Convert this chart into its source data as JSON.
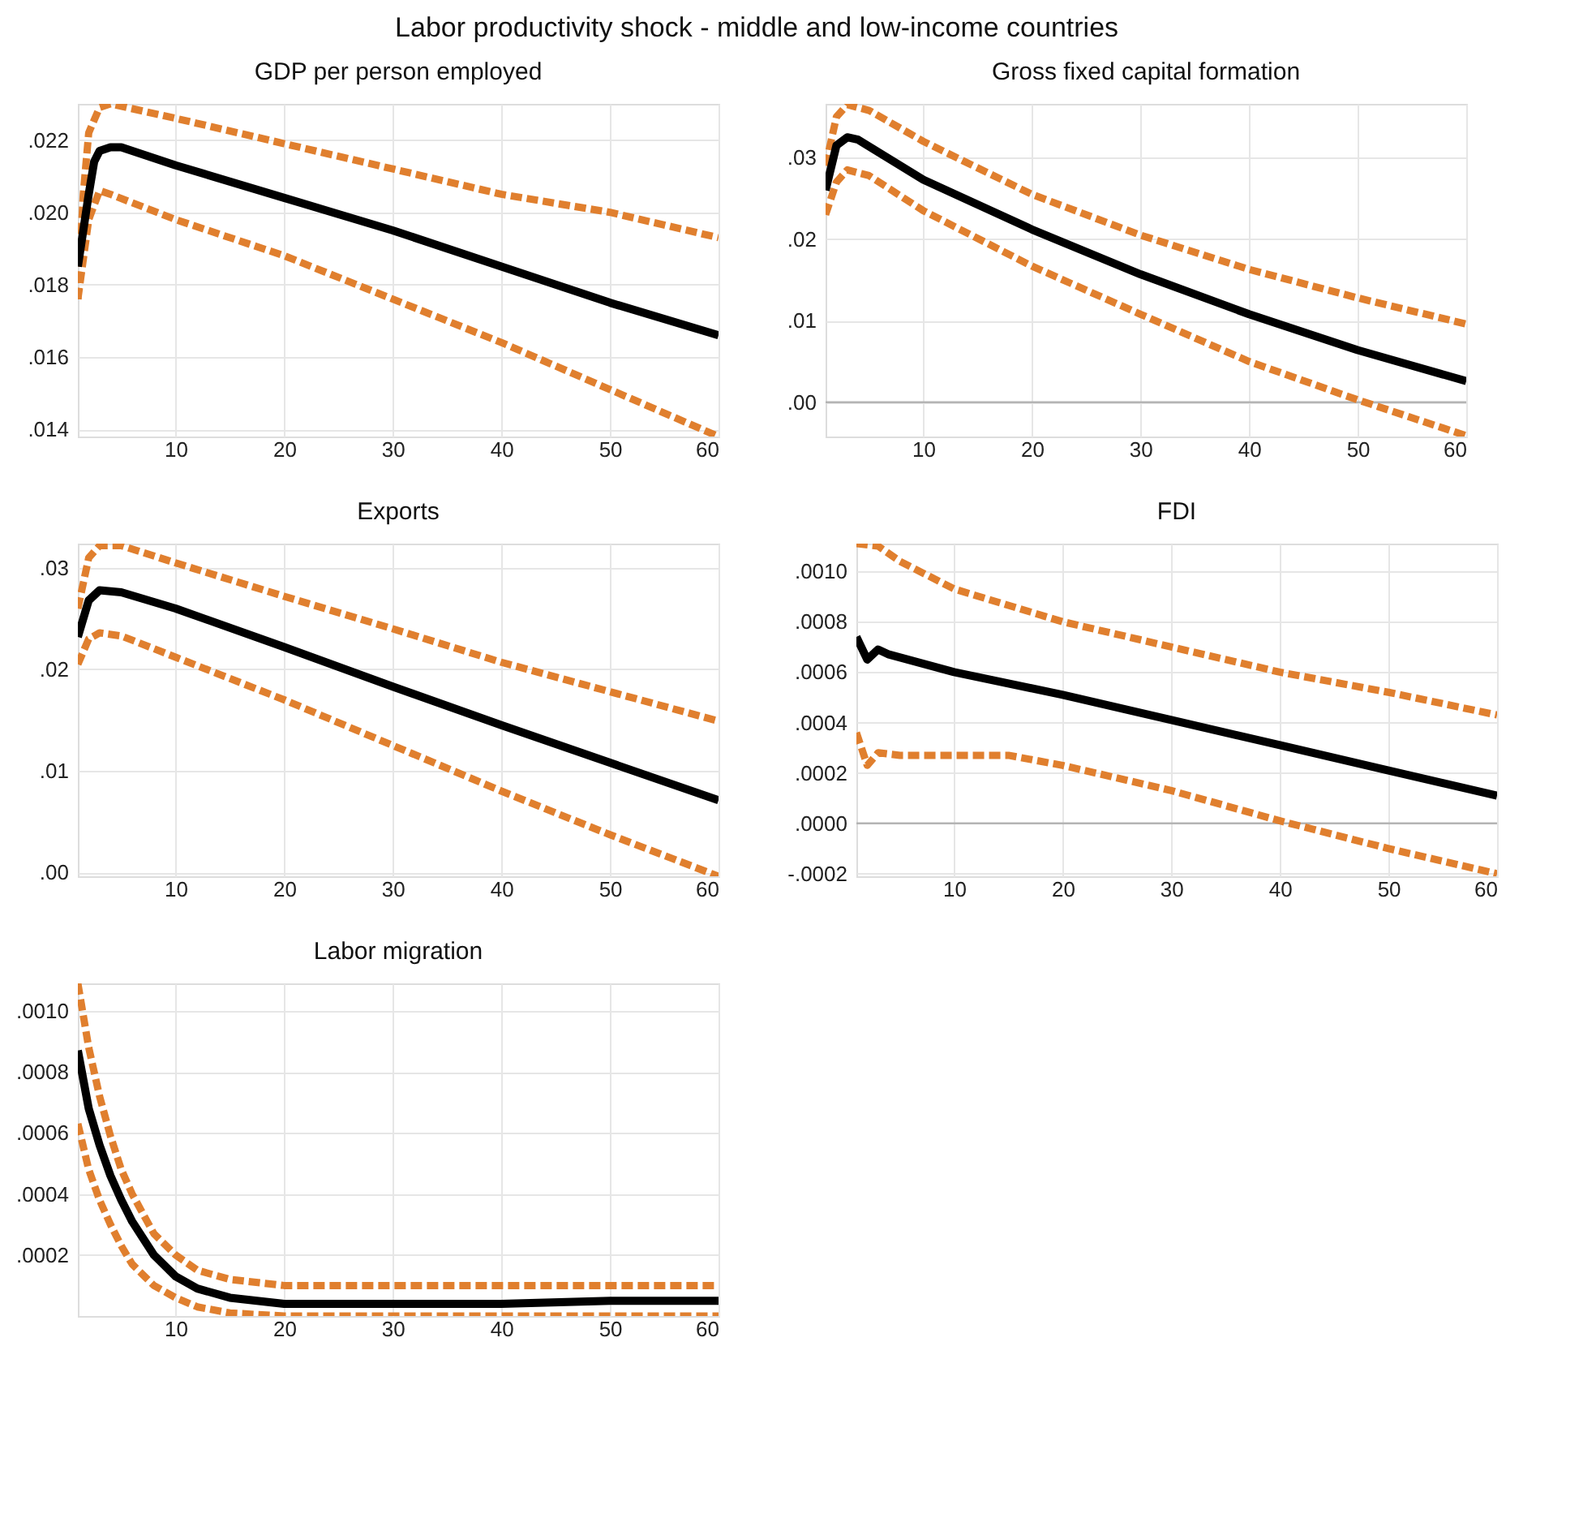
{
  "chart_data": [
    {
      "type": "line",
      "title": "GDP per person employed",
      "annotations": [
        "Labor productivity shock - middle and low-income countries"
      ],
      "grid": true,
      "xlim": [
        1,
        60
      ],
      "xticks": [
        10,
        20,
        30,
        40,
        50,
        60
      ],
      "ylim": [
        0.0138,
        0.023
      ],
      "yticks": [
        {
          "value": 0.014,
          "label": ".014"
        },
        {
          "value": 0.016,
          "label": ".016"
        },
        {
          "value": 0.018,
          "label": ".018"
        },
        {
          "value": 0.02,
          "label": ".020"
        },
        {
          "value": 0.022,
          "label": ".022"
        }
      ],
      "series": [
        {
          "color": "#e07f2e",
          "line_style": "dashed",
          "x": [
            1,
            1.5,
            2,
            3,
            4,
            10,
            20,
            30,
            40,
            50,
            60
          ],
          "values": [
            0.0176,
            0.0205,
            0.0222,
            0.0229,
            0.023,
            0.0226,
            0.0219,
            0.0212,
            0.0205,
            0.02,
            0.0193
          ]
        },
        {
          "color": "#e07f2e",
          "line_style": "dashed",
          "x": [
            1,
            2,
            3,
            4,
            10,
            20,
            30,
            40,
            50,
            60
          ],
          "values": [
            0.0176,
            0.0198,
            0.0206,
            0.0205,
            0.0198,
            0.0188,
            0.0176,
            0.0164,
            0.0151,
            0.0138
          ]
        },
        {
          "color": "#000000",
          "line_style": "solid",
          "x": [
            1,
            2,
            2.5,
            3,
            4,
            5,
            10,
            20,
            30,
            40,
            50,
            60
          ],
          "values": [
            0.0185,
            0.0205,
            0.0214,
            0.0217,
            0.0218,
            0.0218,
            0.0213,
            0.0204,
            0.0195,
            0.0185,
            0.0175,
            0.0166
          ]
        }
      ]
    },
    {
      "type": "line",
      "title": "Gross fixed capital formation",
      "grid": true,
      "xlim": [
        1,
        60
      ],
      "xticks": [
        10,
        20,
        30,
        40,
        50,
        60
      ],
      "ylim": [
        -0.0042,
        0.0366
      ],
      "yticks": [
        {
          "value": 0,
          "label": ".00"
        },
        {
          "value": 0.01,
          "label": ".01"
        },
        {
          "value": 0.02,
          "label": ".02"
        },
        {
          "value": 0.03,
          "label": ".03"
        }
      ],
      "ref_lines": [
        {
          "axis": "y",
          "value": 0,
          "color": "#b4b4b4"
        }
      ],
      "series": [
        {
          "color": "#e07f2e",
          "line_style": "dashed",
          "x": [
            1,
            2,
            3,
            5,
            10,
            20,
            30,
            40,
            50,
            60
          ],
          "values": [
            0.029,
            0.035,
            0.0365,
            0.0358,
            0.032,
            0.0255,
            0.0205,
            0.0163,
            0.0128,
            0.0096
          ]
        },
        {
          "color": "#e07f2e",
          "line_style": "dashed",
          "x": [
            1,
            2,
            3,
            5,
            10,
            20,
            30,
            40,
            50,
            60
          ],
          "values": [
            0.023,
            0.027,
            0.0285,
            0.0278,
            0.0235,
            0.0167,
            0.0108,
            0.005,
            0.0003,
            -0.0041
          ]
        },
        {
          "color": "#000000",
          "line_style": "solid",
          "x": [
            1,
            2,
            3,
            4,
            10,
            20,
            30,
            40,
            50,
            60
          ],
          "values": [
            0.026,
            0.0315,
            0.0325,
            0.0322,
            0.0273,
            0.0212,
            0.0157,
            0.0108,
            0.0064,
            0.0026
          ]
        }
      ]
    },
    {
      "type": "line",
      "title": "Exports",
      "grid": true,
      "xlim": [
        1,
        60
      ],
      "xticks": [
        10,
        20,
        30,
        40,
        50,
        60
      ],
      "ylim": [
        -0.0004,
        0.0324
      ],
      "yticks": [
        {
          "value": 0,
          "label": ".00"
        },
        {
          "value": 0.01,
          "label": ".01"
        },
        {
          "value": 0.02,
          "label": ".02"
        },
        {
          "value": 0.03,
          "label": ".03"
        }
      ],
      "series": [
        {
          "color": "#e07f2e",
          "line_style": "dashed",
          "x": [
            1,
            2,
            3,
            5,
            10,
            20,
            30,
            40,
            50,
            60
          ],
          "values": [
            0.026,
            0.031,
            0.0322,
            0.0322,
            0.0305,
            0.0272,
            0.024,
            0.0207,
            0.0178,
            0.0149
          ]
        },
        {
          "color": "#e07f2e",
          "line_style": "dashed",
          "x": [
            1,
            2,
            3,
            5,
            10,
            20,
            30,
            40,
            50,
            60
          ],
          "values": [
            0.0205,
            0.023,
            0.0236,
            0.0233,
            0.0212,
            0.017,
            0.0125,
            0.008,
            0.0037,
            -0.0004
          ]
        },
        {
          "color": "#000000",
          "line_style": "solid",
          "x": [
            1,
            2,
            3,
            5,
            10,
            20,
            30,
            40,
            50,
            60
          ],
          "values": [
            0.0232,
            0.0268,
            0.0278,
            0.0276,
            0.026,
            0.0222,
            0.0183,
            0.0145,
            0.0108,
            0.0071
          ]
        }
      ]
    },
    {
      "type": "line",
      "title": "FDI",
      "grid": true,
      "xlim": [
        1,
        60
      ],
      "xticks": [
        10,
        20,
        30,
        40,
        50,
        60
      ],
      "ylim": [
        -0.00021,
        0.00111
      ],
      "yticks": [
        {
          "value": -0.0002,
          "label": "-.0002"
        },
        {
          "value": 0,
          "label": ".0000"
        },
        {
          "value": 0.0002,
          "label": ".0002"
        },
        {
          "value": 0.0004,
          "label": ".0004"
        },
        {
          "value": 0.0006,
          "label": ".0006"
        },
        {
          "value": 0.0008,
          "label": ".0008"
        },
        {
          "value": 0.001,
          "label": ".0010"
        }
      ],
      "ref_lines": [
        {
          "axis": "y",
          "value": 0,
          "color": "#b4b4b4"
        }
      ],
      "series": [
        {
          "color": "#e07f2e",
          "line_style": "dashed",
          "x": [
            1,
            3,
            5,
            10,
            20,
            30,
            40,
            50,
            60
          ],
          "values": [
            0.00111,
            0.0011,
            0.00104,
            0.00093,
            0.0008,
            0.0007,
            0.0006,
            0.00052,
            0.00043
          ]
        },
        {
          "color": "#e07f2e",
          "line_style": "dashed",
          "x": [
            1,
            2,
            3,
            5,
            10,
            15,
            20,
            30,
            40,
            50,
            60
          ],
          "values": [
            0.00036,
            0.00023,
            0.00028,
            0.00027,
            0.00027,
            0.00027,
            0.00023,
            0.00013,
            1e-05,
            -0.0001,
            -0.0002
          ]
        },
        {
          "color": "#000000",
          "line_style": "solid",
          "x": [
            1,
            2,
            3,
            4,
            10,
            20,
            30,
            40,
            50,
            60
          ],
          "values": [
            0.00074,
            0.00065,
            0.00069,
            0.00067,
            0.0006,
            0.00051,
            0.00041,
            0.00031,
            0.00021,
            0.00011
          ]
        }
      ]
    },
    {
      "type": "line",
      "title": "Labor migration",
      "grid": true,
      "xlim": [
        1,
        60
      ],
      "xticks": [
        10,
        20,
        30,
        40,
        50,
        60
      ],
      "ylim": [
        0,
        0.00109
      ],
      "yticks": [
        {
          "value": 0.0002,
          "label": ".0002"
        },
        {
          "value": 0.0004,
          "label": ".0004"
        },
        {
          "value": 0.0006,
          "label": ".0006"
        },
        {
          "value": 0.0008,
          "label": ".0008"
        },
        {
          "value": 0.001,
          "label": ".0010"
        }
      ],
      "series": [
        {
          "color": "#e07f2e",
          "line_style": "dashed",
          "x": [
            1,
            2,
            3,
            4,
            5,
            6,
            8,
            10,
            12,
            15,
            20,
            30,
            60
          ],
          "values": [
            0.00109,
            0.00088,
            0.00072,
            0.00059,
            0.00048,
            0.0004,
            0.00027,
            0.0002,
            0.00015,
            0.00012,
            0.0001,
            0.0001,
            0.0001
          ]
        },
        {
          "color": "#e07f2e",
          "line_style": "dashed",
          "x": [
            1,
            2,
            3,
            4,
            5,
            6,
            8,
            10,
            12,
            15,
            20,
            60
          ],
          "values": [
            0.00063,
            0.00048,
            0.00038,
            0.0003,
            0.00023,
            0.00017,
            0.0001,
            6e-05,
            3e-05,
            1e-05,
            0.0,
            0.0
          ]
        },
        {
          "color": "#000000",
          "line_style": "solid",
          "x": [
            1,
            2,
            3,
            4,
            5,
            6,
            8,
            10,
            12,
            15,
            20,
            30,
            40,
            50,
            60
          ],
          "values": [
            0.00087,
            0.00068,
            0.00056,
            0.00046,
            0.00038,
            0.00031,
            0.0002,
            0.00013,
            9e-05,
            6e-05,
            4e-05,
            4e-05,
            4e-05,
            5e-05,
            5e-05
          ]
        }
      ]
    }
  ]
}
